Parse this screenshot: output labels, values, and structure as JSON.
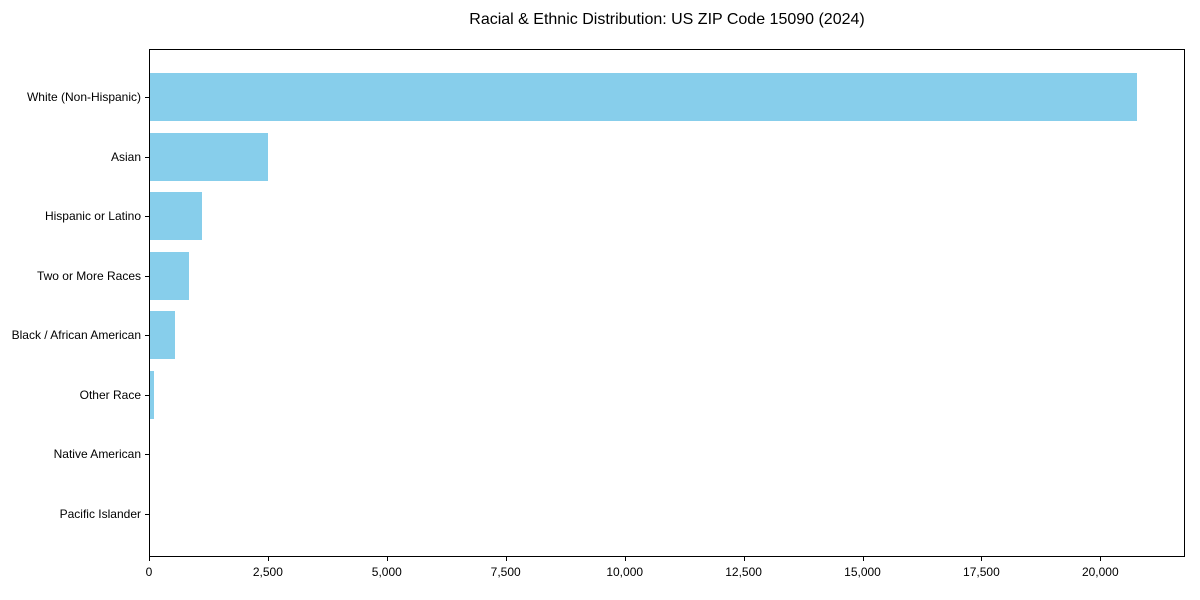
{
  "figure": {
    "background": "#FFFFFF",
    "text_color": "#000000",
    "spine_color": "#000000"
  },
  "chart_data": {
    "type": "bar",
    "orientation": "horizontal",
    "title": "Racial & Ethnic Distribution: US ZIP Code 15090 (2024)",
    "categories": [
      "White (Non-Hispanic)",
      "Asian",
      "Hispanic or Latino",
      "Two or More Races",
      "Black / African American",
      "Other Race",
      "Native American",
      "Pacific Islander"
    ],
    "values": [
      20740,
      2490,
      1090,
      810,
      530,
      75,
      0,
      0
    ],
    "bar_color": "#87CEEB",
    "xlabel": "",
    "ylabel": "",
    "xlim": [
      0,
      21780
    ],
    "x_ticks": [
      0,
      2500,
      5000,
      7500,
      10000,
      12500,
      15000,
      17500,
      20000
    ],
    "x_tick_labels": [
      "0",
      "2,500",
      "5,000",
      "7,500",
      "10,000",
      "12,500",
      "15,000",
      "17,500",
      "20,000"
    ],
    "grid": false,
    "legend": null
  }
}
